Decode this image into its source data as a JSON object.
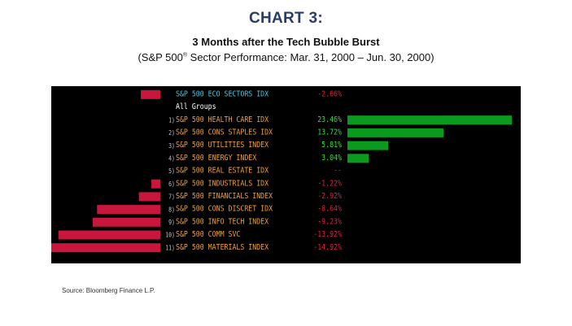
{
  "header": {
    "title": "CHART 3:",
    "subtitle": "3 Months after the Tech Bubble Burst",
    "subtitle2_pre": "(S&P 500",
    "subtitle2_reg": "®",
    "subtitle2_post": " Sector Performance: Mar. 31, 2000 – Jun. 30, 2000)"
  },
  "source": "Source: Bloomberg Finance L.P.",
  "colors": {
    "background": "#000000",
    "positive": "#0a9a1e",
    "negative": "#c8163c",
    "label": "#f0a030",
    "index_label": "#3fc8e0",
    "value_text": "#e02040",
    "value_text_positive": "#36e03c",
    "group_text": "#ffffff",
    "rank_text": "#c8c8c8"
  },
  "chart_data": {
    "type": "bar",
    "orientation": "horizontal",
    "title": "3 Months after the Tech Bubble Burst",
    "subtitle": "(S&P 500® Sector Performance: Mar. 31, 2000 – Jun. 30, 2000)",
    "group_label": "All Groups",
    "index": {
      "name": "S&P 500 ECO SECTORS IDX",
      "value": -2.66,
      "display": "-2.66%"
    },
    "categories": [
      "S&P 500 HEALTH CARE IDX",
      "S&P 500 CONS STAPLES IDX",
      "S&P 500 UTILITIES INDEX",
      "S&P 500 ENERGY INDEX",
      "S&P 500 REAL ESTATE IDX",
      "S&P 500 INDUSTRIALS IDX",
      "S&P 500 FINANCIALS INDEX",
      "S&P 500 CONS DISCRET IDX",
      "S&P 500 INFO TECH INDEX",
      "S&P 500 COMM SVC",
      "S&P 500 MATERIALS INDEX"
    ],
    "ranks": [
      "1)",
      "2)",
      "3)",
      "4)",
      "5)",
      "6)",
      "7)",
      "8)",
      "9)",
      "10)",
      "11)"
    ],
    "values": [
      23.46,
      13.72,
      5.81,
      3.04,
      null,
      -1.22,
      -2.92,
      -8.64,
      -9.23,
      -13.92,
      -14.92
    ],
    "value_labels": [
      "23.46%",
      "13.72%",
      "5.81%",
      "3.04%",
      "--",
      "-1.22%",
      "-2.92%",
      "-8.64%",
      "-9.23%",
      "-13.92%",
      "-14.92%"
    ],
    "unit": "%"
  }
}
